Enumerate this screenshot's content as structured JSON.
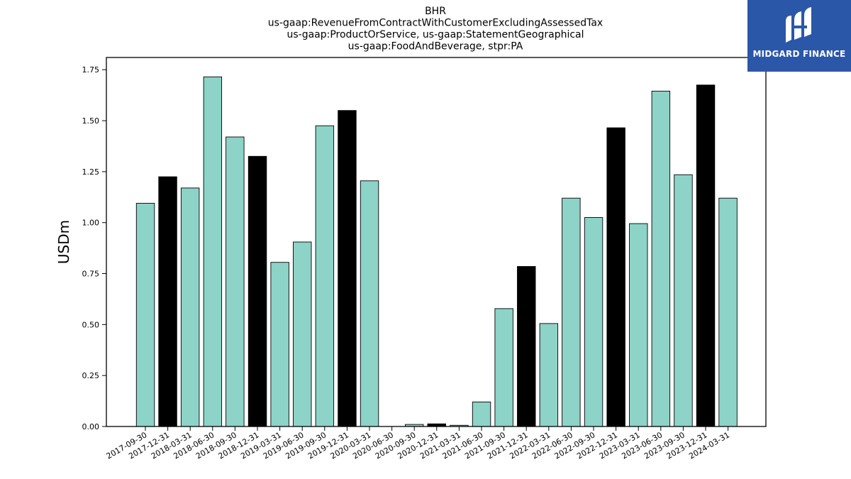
{
  "brand": {
    "name": "MIDGARD FINANCE",
    "background_color": "#2b57a9",
    "icon": "midgard-logo-icon"
  },
  "chart_data": {
    "type": "bar",
    "title_lines": [
      "BHR",
      "us-gaap:RevenueFromContractWithCustomerExcludingAssessedTax",
      "us-gaap:ProductOrService, us-gaap:StatementGeographical",
      "us-gaap:FoodAndBeverage, stpr:PA"
    ],
    "xlabel": "",
    "ylabel": "USDm",
    "ylim": [
      0,
      1.81
    ],
    "yticks": [
      0.0,
      0.25,
      0.5,
      0.75,
      1.0,
      1.25,
      1.5,
      1.75
    ],
    "ytick_labels": [
      "0.00",
      "0.25",
      "0.50",
      "0.75",
      "1.00",
      "1.25",
      "1.50",
      "1.75"
    ],
    "grid": false,
    "legend": "none",
    "colors": {
      "quarter": "#8dd3c7",
      "year_end": "#000000",
      "edge": "#000000"
    },
    "categories": [
      "2017-09-30",
      "2017-12-31",
      "2018-03-31",
      "2018-06-30",
      "2018-09-30",
      "2018-12-31",
      "2019-03-31",
      "2019-06-30",
      "2019-09-30",
      "2019-12-31",
      "2020-03-31",
      "2020-06-30",
      "2020-09-30",
      "2020-12-31",
      "2021-03-31",
      "2021-06-30",
      "2021-09-30",
      "2021-12-31",
      "2022-03-31",
      "2022-06-30",
      "2022-09-30",
      "2022-12-31",
      "2023-03-31",
      "2023-06-30",
      "2023-09-30",
      "2023-12-31",
      "2024-03-31"
    ],
    "values": [
      1.095,
      1.225,
      1.17,
      1.715,
      1.42,
      1.325,
      0.805,
      0.905,
      1.475,
      1.55,
      1.205,
      0.0,
      0.01,
      0.013,
      0.006,
      0.12,
      0.578,
      0.785,
      0.505,
      1.12,
      1.025,
      1.465,
      0.995,
      1.645,
      1.235,
      1.675,
      1.12
    ]
  }
}
